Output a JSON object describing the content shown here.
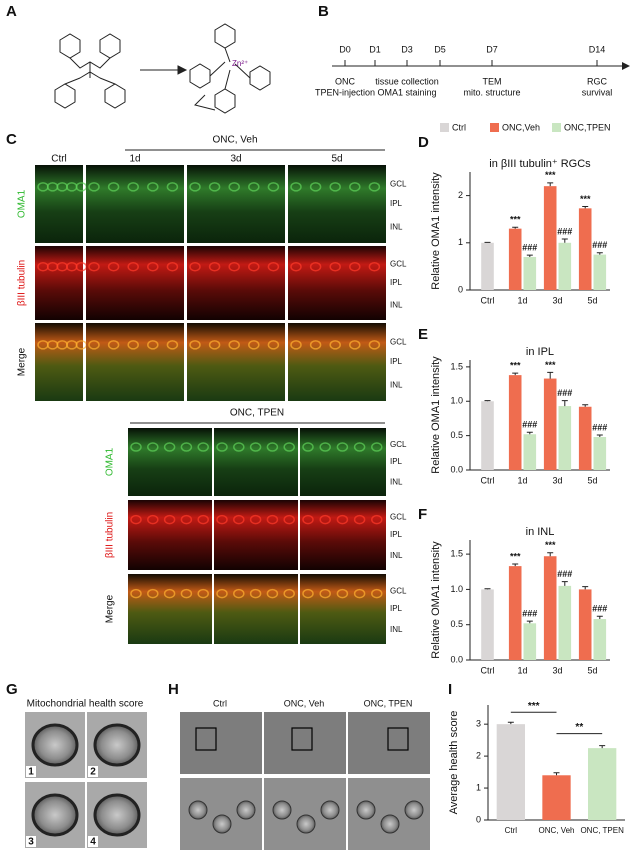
{
  "figure": {
    "A": {
      "label": "A",
      "ion": "Zn²⁺"
    },
    "B": {
      "label": "B",
      "days": [
        "D0",
        "D1",
        "D3",
        "D5",
        "D7",
        "D14"
      ],
      "events": [
        [
          "ONC",
          "TPEN-injection"
        ],
        [
          "tissue collection",
          "OMA1 staining"
        ],
        [
          "TEM",
          "mito. structure"
        ],
        [
          "RGC",
          "survival"
        ]
      ]
    },
    "C": {
      "label": "C",
      "veh_group": "ONC, Veh",
      "tpen_group": "ONC, TPEN",
      "columns": [
        "Ctrl",
        "1d",
        "3d",
        "5d"
      ],
      "rows": [
        "OMA1",
        "βIII tubulin",
        "Merge"
      ],
      "layers": [
        "GCL",
        "IPL",
        "INL"
      ]
    },
    "G": {
      "label": "G",
      "title": "Mitochondrial health score",
      "scores": [
        1,
        2,
        3,
        4
      ]
    },
    "H": {
      "label": "H",
      "columns": [
        "Ctrl",
        "ONC, Veh",
        "ONC, TPEN"
      ]
    }
  },
  "chart_data": [
    {
      "type": "bar",
      "label": "D",
      "title": "in βIII tubulin⁺ RGCs",
      "ylabel": "Relative OMA1 intensity",
      "categories": [
        "Ctrl",
        "1d",
        "3d",
        "5d"
      ],
      "ylim": [
        0,
        2.5
      ],
      "yticks": [
        0,
        1,
        2
      ],
      "legend": "top",
      "series": [
        {
          "name": "Ctrl",
          "color": "#d9d6d6",
          "values": [
            1.0,
            null,
            null,
            null
          ],
          "errors": [
            0.01,
            null,
            null,
            null
          ]
        },
        {
          "name": "ONC,Veh",
          "color": "#ef6d4f",
          "values": [
            null,
            1.3,
            2.2,
            1.73
          ],
          "errors": [
            null,
            0.03,
            0.07,
            0.04
          ],
          "annotations": [
            null,
            "***",
            "***",
            "***"
          ]
        },
        {
          "name": "ONC,TPEN",
          "color": "#c9e6c1",
          "values": [
            null,
            0.7,
            1.0,
            0.75
          ],
          "errors": [
            null,
            0.04,
            0.08,
            0.04
          ],
          "annotations": [
            null,
            "###",
            "###",
            "###"
          ]
        }
      ]
    },
    {
      "type": "bar",
      "label": "E",
      "title": "in IPL",
      "ylabel": "Relative OMA1 intensity",
      "categories": [
        "Ctrl",
        "1d",
        "3d",
        "5d"
      ],
      "ylim": [
        0,
        1.6
      ],
      "yticks": [
        {
          "value": 0,
          "label": "0.0"
        },
        0.5,
        {
          "value": 1,
          "label": "1.0"
        },
        1.5
      ],
      "series": [
        {
          "color": "#d9d6d6",
          "values": [
            1.0,
            null,
            null,
            null
          ],
          "errors": [
            0.01,
            null,
            null,
            null
          ]
        },
        {
          "color": "#ef6d4f",
          "values": [
            null,
            1.38,
            1.33,
            0.92
          ],
          "errors": [
            null,
            0.03,
            0.09,
            0.03
          ],
          "annotations": [
            null,
            "***",
            "***",
            null
          ]
        },
        {
          "color": "#c9e6c1",
          "values": [
            null,
            0.52,
            0.93,
            0.48
          ],
          "errors": [
            null,
            0.03,
            0.08,
            0.03
          ],
          "annotations": [
            null,
            "###",
            "###",
            "###"
          ]
        }
      ]
    },
    {
      "type": "bar",
      "label": "F",
      "title": "in INL",
      "ylabel": "Relative OMA1 intensity",
      "categories": [
        "Ctrl",
        "1d",
        "3d",
        "5d"
      ],
      "ylim": [
        0,
        1.7
      ],
      "yticks": [
        {
          "value": 0,
          "label": "0.0"
        },
        0.5,
        {
          "value": 1,
          "label": "1.0"
        },
        1.5
      ],
      "series": [
        {
          "color": "#d9d6d6",
          "values": [
            1.0,
            null,
            null,
            null
          ],
          "errors": [
            0.01,
            null,
            null,
            null
          ]
        },
        {
          "color": "#ef6d4f",
          "values": [
            null,
            1.33,
            1.47,
            1.0
          ],
          "errors": [
            null,
            0.03,
            0.05,
            0.04
          ],
          "annotations": [
            null,
            "***",
            "***",
            null
          ]
        },
        {
          "color": "#c9e6c1",
          "values": [
            null,
            0.52,
            1.05,
            0.58
          ],
          "errors": [
            null,
            0.03,
            0.06,
            0.04
          ],
          "annotations": [
            null,
            "###",
            "###",
            "###"
          ]
        }
      ]
    },
    {
      "type": "bar",
      "label": "I",
      "ylabel": "Average health score",
      "categories": [
        "Ctrl",
        "ONC, Veh",
        "ONC, TPEN"
      ],
      "values": [
        3.0,
        1.4,
        2.25
      ],
      "errors": [
        0.06,
        0.08,
        0.08
      ],
      "colors": [
        "#d9d6d6",
        "#ef6d4f",
        "#c9e6c1"
      ],
      "ylim": [
        0,
        3.6
      ],
      "yticks": [
        0,
        1,
        2,
        3
      ],
      "annotations": [
        "***",
        "**"
      ]
    }
  ]
}
